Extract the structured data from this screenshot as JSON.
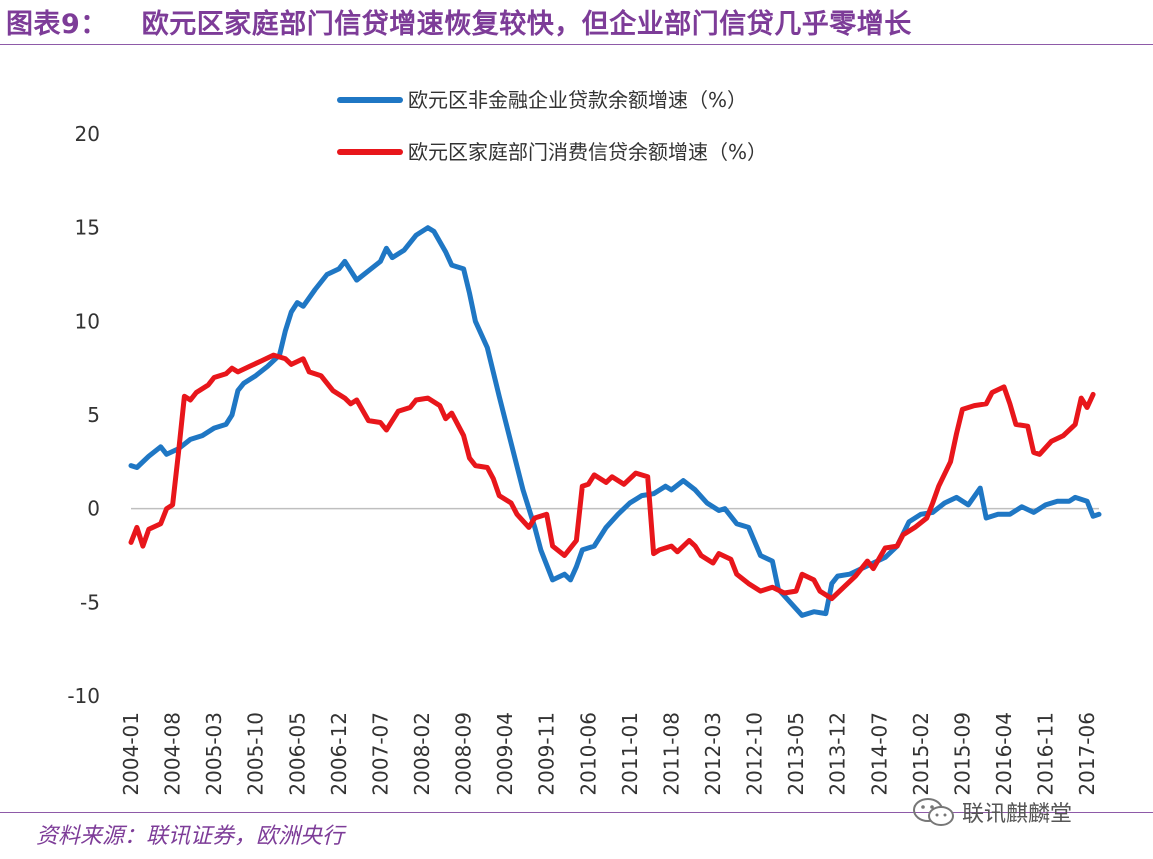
{
  "title": {
    "number": "图表9：",
    "text": "欧元区家庭部门信贷增速恢复较快，但企业部门信贷几乎零增长"
  },
  "source": "资料来源：联讯证券，欧洲央行",
  "watermark": "联讯麒麟堂",
  "colors": {
    "title": "#7d3c98",
    "series_blue": "#1f77c4",
    "series_red": "#e8161b",
    "axis": "#bfbfbf"
  },
  "chart_data": {
    "type": "line",
    "title": "",
    "xlabel": "",
    "ylabel": "",
    "ylim": [
      -10,
      20
    ],
    "yticks": [
      -10,
      -5,
      0,
      5,
      10,
      15,
      20
    ],
    "x_tick_labels": [
      "2004-01",
      "2004-08",
      "2005-03",
      "2005-10",
      "2006-05",
      "2006-12",
      "2007-07",
      "2008-02",
      "2008-09",
      "2009-04",
      "2009-11",
      "2010-06",
      "2011-01",
      "2011-08",
      "2012-03",
      "2012-10",
      "2013-05",
      "2013-12",
      "2014-07",
      "2015-02",
      "2015-09",
      "2016-04",
      "2016-11",
      "2017-06"
    ],
    "x_tick_step_months": 7,
    "legend": {
      "position": "top"
    },
    "grid": false,
    "series": [
      {
        "name": "欧元区非金融企业贷款余额增速（%）",
        "color": "#1f77c4",
        "points": [
          [
            "2004-01",
            2.3
          ],
          [
            "2004-02",
            2.2
          ],
          [
            "2004-04",
            2.8
          ],
          [
            "2004-06",
            3.3
          ],
          [
            "2004-07",
            2.9
          ],
          [
            "2004-09",
            3.2
          ],
          [
            "2004-11",
            3.7
          ],
          [
            "2005-01",
            3.9
          ],
          [
            "2005-03",
            4.3
          ],
          [
            "2005-05",
            4.5
          ],
          [
            "2005-06",
            5.0
          ],
          [
            "2005-07",
            6.3
          ],
          [
            "2005-08",
            6.7
          ],
          [
            "2005-10",
            7.1
          ],
          [
            "2005-12",
            7.6
          ],
          [
            "2006-02",
            8.2
          ],
          [
            "2006-03",
            9.5
          ],
          [
            "2006-04",
            10.5
          ],
          [
            "2006-05",
            11.0
          ],
          [
            "2006-06",
            10.8
          ],
          [
            "2006-08",
            11.7
          ],
          [
            "2006-10",
            12.5
          ],
          [
            "2006-12",
            12.8
          ],
          [
            "2007-01",
            13.2
          ],
          [
            "2007-03",
            12.2
          ],
          [
            "2007-05",
            12.7
          ],
          [
            "2007-07",
            13.2
          ],
          [
            "2007-08",
            13.9
          ],
          [
            "2007-09",
            13.4
          ],
          [
            "2007-11",
            13.8
          ],
          [
            "2008-01",
            14.6
          ],
          [
            "2008-03",
            15.0
          ],
          [
            "2008-04",
            14.8
          ],
          [
            "2008-06",
            13.7
          ],
          [
            "2008-07",
            13.0
          ],
          [
            "2008-09",
            12.8
          ],
          [
            "2008-10",
            11.5
          ],
          [
            "2008-11",
            10.0
          ],
          [
            "2009-01",
            8.6
          ],
          [
            "2009-03",
            6.0
          ],
          [
            "2009-05",
            3.5
          ],
          [
            "2009-07",
            1.0
          ],
          [
            "2009-09",
            -1.0
          ],
          [
            "2009-10",
            -2.2
          ],
          [
            "2009-11",
            -3.0
          ],
          [
            "2009-12",
            -3.8
          ],
          [
            "2010-02",
            -3.5
          ],
          [
            "2010-03",
            -3.8
          ],
          [
            "2010-04",
            -3.1
          ],
          [
            "2010-05",
            -2.2
          ],
          [
            "2010-07",
            -2.0
          ],
          [
            "2010-09",
            -1.0
          ],
          [
            "2010-11",
            -0.3
          ],
          [
            "2011-01",
            0.3
          ],
          [
            "2011-03",
            0.7
          ],
          [
            "2011-05",
            0.8
          ],
          [
            "2011-07",
            1.2
          ],
          [
            "2011-08",
            1.0
          ],
          [
            "2011-10",
            1.5
          ],
          [
            "2011-12",
            1.0
          ],
          [
            "2012-02",
            0.3
          ],
          [
            "2012-04",
            -0.1
          ],
          [
            "2012-05",
            0.0
          ],
          [
            "2012-07",
            -0.8
          ],
          [
            "2012-09",
            -1.0
          ],
          [
            "2012-11",
            -2.5
          ],
          [
            "2013-01",
            -2.8
          ],
          [
            "2013-02",
            -4.3
          ],
          [
            "2013-04",
            -5.0
          ],
          [
            "2013-06",
            -5.7
          ],
          [
            "2013-08",
            -5.5
          ],
          [
            "2013-10",
            -5.6
          ],
          [
            "2013-11",
            -4.0
          ],
          [
            "2013-12",
            -3.6
          ],
          [
            "2014-02",
            -3.5
          ],
          [
            "2014-04",
            -3.2
          ],
          [
            "2014-06",
            -2.9
          ],
          [
            "2014-08",
            -2.6
          ],
          [
            "2014-10",
            -2.0
          ],
          [
            "2014-12",
            -0.7
          ],
          [
            "2015-02",
            -0.3
          ],
          [
            "2015-04",
            -0.2
          ],
          [
            "2015-06",
            0.3
          ],
          [
            "2015-08",
            0.6
          ],
          [
            "2015-10",
            0.2
          ],
          [
            "2015-12",
            1.1
          ],
          [
            "2016-01",
            -0.5
          ],
          [
            "2016-03",
            -0.3
          ],
          [
            "2016-05",
            -0.3
          ],
          [
            "2016-07",
            0.1
          ],
          [
            "2016-09",
            -0.2
          ],
          [
            "2016-11",
            0.2
          ],
          [
            "2017-01",
            0.4
          ],
          [
            "2017-03",
            0.4
          ],
          [
            "2017-04",
            0.6
          ],
          [
            "2017-06",
            0.4
          ],
          [
            "2017-07",
            -0.4
          ],
          [
            "2017-08",
            -0.3
          ]
        ]
      },
      {
        "name": "欧元区家庭部门消费信贷余额增速（%）",
        "color": "#e8161b",
        "points": [
          [
            "2004-01",
            -1.8
          ],
          [
            "2004-02",
            -1.0
          ],
          [
            "2004-03",
            -2.0
          ],
          [
            "2004-04",
            -1.1
          ],
          [
            "2004-06",
            -0.8
          ],
          [
            "2004-07",
            0.0
          ],
          [
            "2004-08",
            0.2
          ],
          [
            "2004-09",
            3.0
          ],
          [
            "2004-10",
            6.0
          ],
          [
            "2004-11",
            5.8
          ],
          [
            "2004-12",
            6.2
          ],
          [
            "2005-02",
            6.6
          ],
          [
            "2005-03",
            7.0
          ],
          [
            "2005-05",
            7.2
          ],
          [
            "2005-06",
            7.5
          ],
          [
            "2005-07",
            7.3
          ],
          [
            "2005-09",
            7.6
          ],
          [
            "2005-11",
            7.9
          ],
          [
            "2006-01",
            8.2
          ],
          [
            "2006-03",
            8.0
          ],
          [
            "2006-04",
            7.7
          ],
          [
            "2006-06",
            8.0
          ],
          [
            "2006-07",
            7.3
          ],
          [
            "2006-09",
            7.1
          ],
          [
            "2006-11",
            6.3
          ],
          [
            "2007-01",
            5.9
          ],
          [
            "2007-02",
            5.6
          ],
          [
            "2007-03",
            5.8
          ],
          [
            "2007-05",
            4.7
          ],
          [
            "2007-07",
            4.6
          ],
          [
            "2007-08",
            4.2
          ],
          [
            "2007-10",
            5.2
          ],
          [
            "2007-12",
            5.4
          ],
          [
            "2008-01",
            5.8
          ],
          [
            "2008-03",
            5.9
          ],
          [
            "2008-05",
            5.5
          ],
          [
            "2008-06",
            4.8
          ],
          [
            "2008-07",
            5.1
          ],
          [
            "2008-09",
            3.9
          ],
          [
            "2008-10",
            2.7
          ],
          [
            "2008-11",
            2.3
          ],
          [
            "2009-01",
            2.2
          ],
          [
            "2009-02",
            1.6
          ],
          [
            "2009-03",
            0.7
          ],
          [
            "2009-05",
            0.3
          ],
          [
            "2009-06",
            -0.3
          ],
          [
            "2009-08",
            -1.0
          ],
          [
            "2009-09",
            -0.5
          ],
          [
            "2009-11",
            -0.3
          ],
          [
            "2009-12",
            -2.0
          ],
          [
            "2010-02",
            -2.5
          ],
          [
            "2010-04",
            -1.7
          ],
          [
            "2010-05",
            1.2
          ],
          [
            "2010-06",
            1.3
          ],
          [
            "2010-07",
            1.8
          ],
          [
            "2010-09",
            1.4
          ],
          [
            "2010-10",
            1.7
          ],
          [
            "2010-12",
            1.3
          ],
          [
            "2011-02",
            1.9
          ],
          [
            "2011-04",
            1.7
          ],
          [
            "2011-05",
            -2.4
          ],
          [
            "2011-06",
            -2.2
          ],
          [
            "2011-08",
            -2.0
          ],
          [
            "2011-09",
            -2.3
          ],
          [
            "2011-11",
            -1.7
          ],
          [
            "2011-12",
            -2.0
          ],
          [
            "2012-01",
            -2.5
          ],
          [
            "2012-03",
            -2.9
          ],
          [
            "2012-04",
            -2.4
          ],
          [
            "2012-06",
            -2.7
          ],
          [
            "2012-07",
            -3.5
          ],
          [
            "2012-09",
            -4.0
          ],
          [
            "2012-11",
            -4.4
          ],
          [
            "2013-01",
            -4.2
          ],
          [
            "2013-03",
            -4.5
          ],
          [
            "2013-05",
            -4.4
          ],
          [
            "2013-06",
            -3.5
          ],
          [
            "2013-08",
            -3.8
          ],
          [
            "2013-09",
            -4.4
          ],
          [
            "2013-11",
            -4.8
          ],
          [
            "2014-01",
            -4.2
          ],
          [
            "2014-03",
            -3.6
          ],
          [
            "2014-05",
            -2.8
          ],
          [
            "2014-06",
            -3.2
          ],
          [
            "2014-08",
            -2.1
          ],
          [
            "2014-10",
            -2.0
          ],
          [
            "2014-11",
            -1.4
          ],
          [
            "2015-01",
            -1.0
          ],
          [
            "2015-03",
            -0.5
          ],
          [
            "2015-04",
            0.3
          ],
          [
            "2015-05",
            1.2
          ],
          [
            "2015-07",
            2.5
          ],
          [
            "2015-08",
            4.0
          ],
          [
            "2015-09",
            5.3
          ],
          [
            "2015-11",
            5.5
          ],
          [
            "2016-01",
            5.6
          ],
          [
            "2016-02",
            6.2
          ],
          [
            "2016-04",
            6.5
          ],
          [
            "2016-05",
            5.6
          ],
          [
            "2016-06",
            4.5
          ],
          [
            "2016-08",
            4.4
          ],
          [
            "2016-09",
            3.0
          ],
          [
            "2016-10",
            2.9
          ],
          [
            "2016-12",
            3.6
          ],
          [
            "2017-02",
            3.9
          ],
          [
            "2017-04",
            4.5
          ],
          [
            "2017-05",
            5.9
          ],
          [
            "2017-06",
            5.4
          ],
          [
            "2017-07",
            6.1
          ]
        ]
      }
    ]
  }
}
